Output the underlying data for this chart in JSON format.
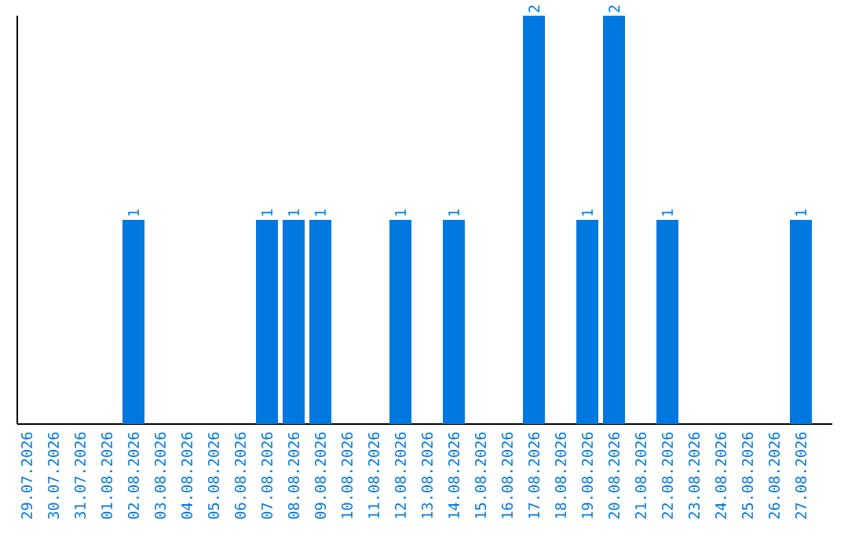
{
  "chart_data": {
    "type": "bar",
    "color": "#0078e0",
    "categories": [
      "29.07.2026",
      "30.07.2026",
      "31.07.2026",
      "01.08.2026",
      "02.08.2026",
      "03.08.2026",
      "04.08.2026",
      "05.08.2026",
      "06.08.2026",
      "07.08.2026",
      "08.08.2026",
      "09.08.2026",
      "10.08.2026",
      "11.08.2026",
      "12.08.2026",
      "13.08.2026",
      "14.08.2026",
      "15.08.2026",
      "16.08.2026",
      "17.08.2026",
      "18.08.2026",
      "19.08.2026",
      "20.08.2026",
      "21.08.2026",
      "22.08.2026",
      "23.08.2026",
      "24.08.2026",
      "25.08.2026",
      "26.08.2026",
      "27.08.2026"
    ],
    "values": [
      0,
      0,
      0,
      0,
      1,
      0,
      0,
      0,
      0,
      1,
      1,
      1,
      0,
      0,
      1,
      0,
      1,
      0,
      0,
      2,
      0,
      1,
      2,
      0,
      1,
      0,
      0,
      0,
      0,
      1
    ],
    "value_labels": [
      null,
      null,
      null,
      null,
      "1",
      null,
      null,
      null,
      null,
      "1",
      "1",
      "1",
      null,
      null,
      "1",
      null,
      "1",
      null,
      null,
      "2",
      null,
      "1",
      "2",
      null,
      "1",
      null,
      null,
      null,
      null,
      "1"
    ]
  }
}
